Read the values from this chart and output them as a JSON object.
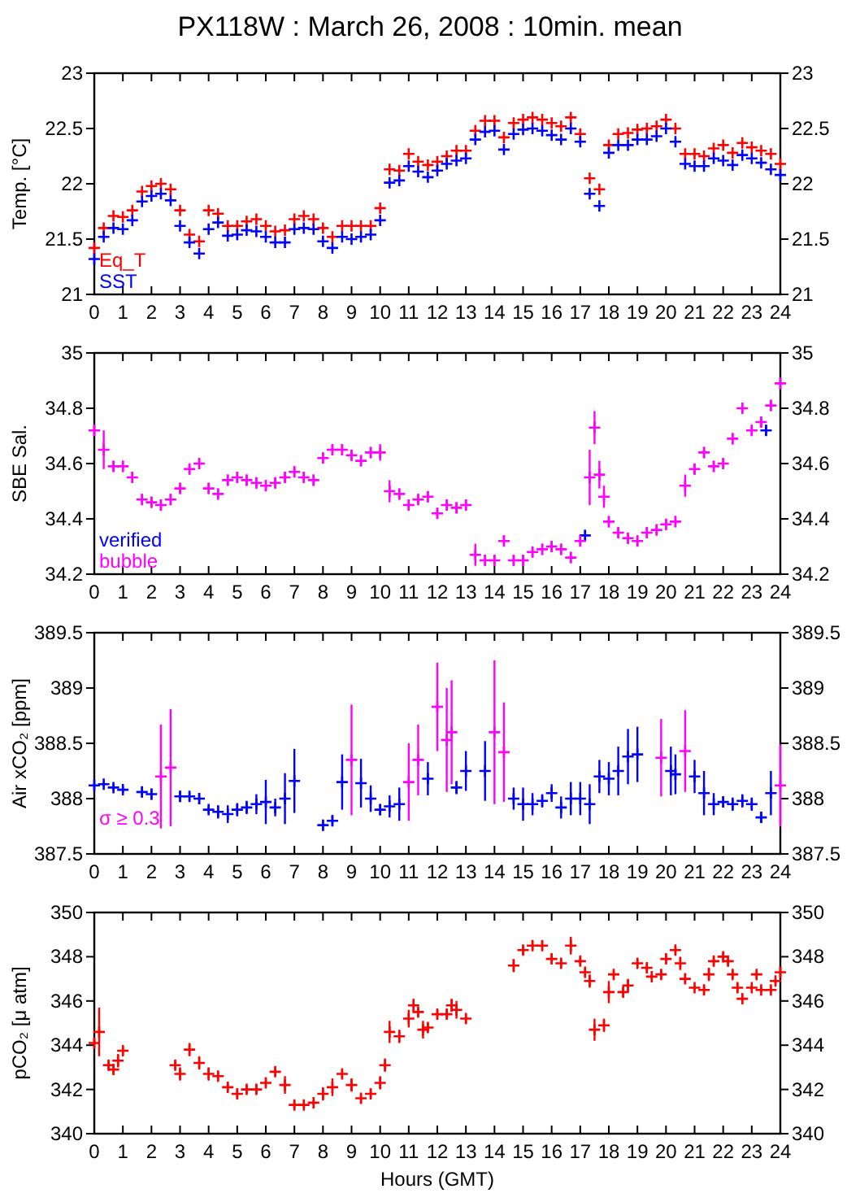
{
  "chart_data": [
    {
      "type": "scatter",
      "title": "PX118W : March 26, 2008 : 10min. mean",
      "ylabel": "Temp. [°C]",
      "marker": "cross",
      "xlim": [
        0,
        24
      ],
      "xticks": [
        0,
        1,
        2,
        3,
        4,
        5,
        6,
        7,
        8,
        9,
        10,
        11,
        12,
        13,
        14,
        15,
        16,
        17,
        18,
        19,
        20,
        21,
        22,
        23,
        24
      ],
      "ylim": [
        21,
        23
      ],
      "yticks": [
        21,
        21.5,
        22,
        22.5,
        23
      ],
      "y2lim": [
        21,
        23
      ],
      "y2ticks": [
        21,
        21.5,
        22,
        22.5,
        23
      ],
      "x": [
        0,
        0.33,
        0.67,
        1,
        1.33,
        1.67,
        2,
        2.33,
        2.67,
        3,
        3.33,
        3.67,
        4,
        4.33,
        4.67,
        5,
        5.33,
        5.67,
        6,
        6.33,
        6.67,
        7,
        7.33,
        7.67,
        8,
        8.33,
        8.67,
        9,
        9.33,
        9.67,
        10,
        10.33,
        10.67,
        11,
        11.33,
        11.67,
        12,
        12.33,
        12.67,
        13,
        13.33,
        13.67,
        14,
        14.33,
        14.67,
        15,
        15.33,
        15.67,
        16,
        16.33,
        16.67,
        17,
        17.33,
        17.67,
        18,
        18.33,
        18.67,
        19,
        19.33,
        19.67,
        20,
        20.33,
        20.67,
        21,
        21.33,
        21.67,
        22,
        22.33,
        22.67,
        23,
        23.33,
        23.67,
        24
      ],
      "series": [
        {
          "name": "Eq_T",
          "color": "#ff0000",
          "values": [
            21.42,
            21.6,
            21.71,
            21.7,
            21.76,
            21.93,
            21.98,
            22,
            21.95,
            21.76,
            21.54,
            21.48,
            21.76,
            21.73,
            21.62,
            21.62,
            21.66,
            21.68,
            21.62,
            21.57,
            21.58,
            21.68,
            21.71,
            21.68,
            21.6,
            21.52,
            21.62,
            21.62,
            21.62,
            21.62,
            21.78,
            22.13,
            22.12,
            22.27,
            22.2,
            22.17,
            22.2,
            22.25,
            22.3,
            22.3,
            22.48,
            22.57,
            22.57,
            22.42,
            22.55,
            22.58,
            22.6,
            22.58,
            22.55,
            22.52,
            22.6,
            22.45,
            22.05,
            21.95,
            22.35,
            22.45,
            22.46,
            22.49,
            22.5,
            22.52,
            22.58,
            22.5,
            22.27,
            22.27,
            22.25,
            22.32,
            22.35,
            22.28,
            22.37,
            22.33,
            22.3,
            22.27,
            22.18
          ]
        },
        {
          "name": "SST",
          "color": "#0000ff",
          "values": [
            21.32,
            21.52,
            21.6,
            21.59,
            21.67,
            21.84,
            21.89,
            21.91,
            21.85,
            21.62,
            21.47,
            21.37,
            21.59,
            21.65,
            21.53,
            21.54,
            21.58,
            21.57,
            21.52,
            21.47,
            21.47,
            21.59,
            21.6,
            21.59,
            21.48,
            21.42,
            21.52,
            21.5,
            21.52,
            21.54,
            21.67,
            22.01,
            22.03,
            22.16,
            22.11,
            22.06,
            22.12,
            22.18,
            22.21,
            22.23,
            22.4,
            22.47,
            22.48,
            22.31,
            22.45,
            22.49,
            22.5,
            22.48,
            22.44,
            22.4,
            22.5,
            22.38,
            21.91,
            21.8,
            22.28,
            22.35,
            22.35,
            22.4,
            22.4,
            22.43,
            22.5,
            22.38,
            22.18,
            22.16,
            22.16,
            22.23,
            22.21,
            22.17,
            22.26,
            22.23,
            22.19,
            22.13,
            22.08
          ]
        }
      ]
    },
    {
      "type": "scatter",
      "ylabel": "SBE Sal.",
      "marker": "cross",
      "xlim": [
        0,
        24
      ],
      "xticks": [
        0,
        1,
        2,
        3,
        4,
        5,
        6,
        7,
        8,
        9,
        10,
        11,
        12,
        13,
        14,
        15,
        16,
        17,
        18,
        19,
        20,
        21,
        22,
        23,
        24
      ],
      "ylim": [
        34.2,
        35
      ],
      "yticks": [
        34.2,
        34.4,
        34.6,
        34.8,
        35
      ],
      "y2lim": [
        34.2,
        35
      ],
      "y2ticks": [
        34.2,
        34.4,
        34.6,
        34.8,
        35
      ],
      "x": [
        0,
        0.33,
        0.67,
        1,
        1.33,
        1.67,
        2,
        2.33,
        2.67,
        3,
        3.33,
        3.67,
        4,
        4.33,
        4.67,
        5,
        5.33,
        5.67,
        6,
        6.33,
        6.67,
        7,
        7.33,
        7.67,
        8,
        8.33,
        8.67,
        9,
        9.33,
        9.67,
        10,
        10.33,
        10.67,
        11,
        11.33,
        11.67,
        12,
        12.33,
        12.67,
        13,
        13.33,
        13.67,
        14,
        14.33,
        14.67,
        15,
        15.33,
        15.67,
        16,
        16.33,
        16.67,
        17,
        17.33,
        17.5,
        17.67,
        17.83,
        18,
        18.33,
        18.67,
        19,
        19.33,
        19.67,
        20,
        20.33,
        20.67,
        21,
        21.33,
        21.67,
        22,
        22.33,
        22.67,
        23,
        23.33,
        23.67,
        24
      ],
      "series": [
        {
          "name": "verified",
          "color": "#0000ff",
          "x": [
            17.17,
            23.5
          ],
          "values": [
            34.34,
            34.72
          ],
          "errors": [
            0.02,
            0.02
          ]
        },
        {
          "name": "bubble",
          "color": "#ff00ff",
          "values": [
            34.72,
            34.65,
            34.59,
            34.59,
            34.55,
            34.47,
            34.46,
            34.45,
            34.47,
            34.51,
            34.58,
            34.6,
            34.51,
            34.49,
            34.54,
            34.55,
            34.54,
            34.53,
            34.52,
            34.53,
            34.55,
            34.57,
            34.55,
            34.54,
            34.62,
            34.65,
            34.65,
            34.63,
            34.61,
            34.64,
            34.64,
            34.5,
            34.49,
            34.45,
            34.47,
            34.48,
            34.42,
            34.45,
            34.44,
            34.45,
            34.27,
            34.25,
            34.25,
            34.32,
            34.25,
            34.25,
            34.28,
            34.29,
            34.3,
            34.29,
            34.26,
            34.32,
            34.55,
            34.73,
            34.56,
            34.48,
            34.39,
            34.35,
            34.33,
            34.32,
            34.35,
            34.36,
            34.38,
            34.39,
            34.52,
            34.58,
            34.64,
            34.59,
            34.6,
            34.69,
            34.8,
            34.72,
            34.75,
            34.81,
            34.89
          ],
          "errors": [
            0.02,
            0.07,
            0.02,
            0.02,
            0.02,
            0.02,
            0.02,
            0.02,
            0.02,
            0.02,
            0.02,
            0.02,
            0.02,
            0.02,
            0.02,
            0.02,
            0.02,
            0.02,
            0.02,
            0.02,
            0.02,
            0.02,
            0.02,
            0.02,
            0.02,
            0.02,
            0.02,
            0.02,
            0.02,
            0.02,
            0.03,
            0.04,
            0.02,
            0.02,
            0.02,
            0.02,
            0.02,
            0.02,
            0.02,
            0.02,
            0.04,
            0.02,
            0.02,
            0.02,
            0.02,
            0.02,
            0.02,
            0.02,
            0.02,
            0.02,
            0.02,
            0.02,
            0.1,
            0.06,
            0.05,
            0.04,
            0.02,
            0.02,
            0.02,
            0.02,
            0.02,
            0.02,
            0.02,
            0.02,
            0.04,
            0.02,
            0.02,
            0.02,
            0.02,
            0.02,
            0.02,
            0.02,
            0.02,
            0.02,
            0.02
          ]
        }
      ]
    },
    {
      "type": "scatter",
      "ylabel": "Air xCO₂ [ppm]",
      "marker": "cross",
      "xlim": [
        0,
        24
      ],
      "xticks": [
        0,
        1,
        2,
        3,
        4,
        5,
        6,
        7,
        8,
        9,
        10,
        11,
        12,
        13,
        14,
        15,
        16,
        17,
        18,
        19,
        20,
        21,
        22,
        23,
        24
      ],
      "ylim": [
        387.5,
        389.5
      ],
      "yticks": [
        387.5,
        388,
        388.5,
        389,
        389.5
      ],
      "y2lim": [
        387.5,
        389.5
      ],
      "y2ticks": [
        387.5,
        388,
        388.5,
        389,
        389.5
      ],
      "x": [
        0,
        0.33,
        0.67,
        1,
        1.67,
        2,
        3,
        3.33,
        3.67,
        4,
        4.33,
        4.67,
        5,
        5.33,
        5.67,
        6,
        6.33,
        6.67,
        7,
        8,
        8.33,
        8.67,
        9.33,
        9.67,
        10,
        10.33,
        10.67,
        11.67,
        12.67,
        13,
        13.67,
        14.67,
        15,
        15.33,
        15.67,
        16,
        16.33,
        16.67,
        17,
        17.33,
        17.67,
        18,
        18.33,
        18.67,
        19,
        20.17,
        20.33,
        21,
        21.33,
        21.67,
        22,
        22.33,
        22.67,
        23,
        23.33,
        23.67
      ],
      "series": [
        {
          "color": "#0000ff",
          "values": [
            388.12,
            388.13,
            388.1,
            388.08,
            388.06,
            388.04,
            388.02,
            388.02,
            388,
            387.9,
            387.88,
            387.86,
            387.9,
            387.92,
            387.95,
            387.97,
            387.92,
            388,
            388.16,
            387.76,
            387.8,
            388.15,
            388.14,
            388,
            387.9,
            387.93,
            387.95,
            388.18,
            388.1,
            388.25,
            388.25,
            388,
            387.95,
            387.95,
            387.98,
            388.05,
            387.92,
            388,
            388,
            387.95,
            388.2,
            388.18,
            388.25,
            388.38,
            388.4,
            388.25,
            388.22,
            388.2,
            388.05,
            387.95,
            387.97,
            387.95,
            387.98,
            387.95,
            387.83,
            388.05
          ],
          "errors": [
            0.02,
            0.02,
            0.03,
            0.03,
            0.05,
            0.05,
            0.05,
            0.04,
            0.05,
            0.03,
            0.06,
            0.08,
            0.06,
            0.06,
            0.09,
            0.2,
            0.08,
            0.23,
            0.29,
            0.05,
            0.05,
            0.25,
            0.22,
            0.12,
            0.05,
            0.1,
            0.15,
            0.15,
            0.06,
            0.18,
            0.27,
            0.1,
            0.15,
            0.1,
            0.06,
            0.08,
            0.1,
            0.15,
            0.15,
            0.18,
            0.15,
            0.15,
            0.22,
            0.25,
            0.25,
            0.22,
            0.18,
            0.15,
            0.2,
            0.1,
            0.05,
            0.06,
            0.06,
            0.06,
            0.05,
            0.2
          ]
        },
        {
          "name": "σ ≥ 0.3",
          "color": "#ff00ff",
          "x": [
            2.33,
            2.67,
            9,
            11,
            11.33,
            12,
            12.33,
            12.5,
            14,
            14.33,
            19.83,
            20.67,
            24
          ],
          "values": [
            388.2,
            388.28,
            388.35,
            388.15,
            388.35,
            388.83,
            388.53,
            388.6,
            388.6,
            388.42,
            388.37,
            388.43,
            388.12
          ],
          "errors": [
            0.47,
            0.53,
            0.5,
            0.35,
            0.32,
            0.4,
            0.47,
            0.47,
            0.65,
            0.45,
            0.35,
            0.37,
            0.37
          ]
        }
      ]
    },
    {
      "type": "scatter",
      "ylabel": "pCO₂ [μ atm]",
      "xlabel": "Hours (GMT)",
      "marker": "cross",
      "xlim": [
        0,
        24
      ],
      "xticks": [
        0,
        1,
        2,
        3,
        4,
        5,
        6,
        7,
        8,
        9,
        10,
        11,
        12,
        13,
        14,
        15,
        16,
        17,
        18,
        19,
        20,
        21,
        22,
        23,
        24
      ],
      "ylim": [
        340,
        350
      ],
      "yticks": [
        340,
        342,
        344,
        346,
        348,
        350
      ],
      "y2lim": [
        340,
        350
      ],
      "y2ticks": [
        340,
        342,
        344,
        346,
        348,
        350
      ],
      "x": [
        0,
        0.17,
        0.5,
        0.67,
        0.83,
        1,
        2.83,
        3,
        3.33,
        3.67,
        4,
        4.33,
        4.67,
        5,
        5.33,
        5.67,
        6,
        6.33,
        6.67,
        7,
        7.33,
        7.67,
        8,
        8.33,
        8.67,
        9,
        9.33,
        9.67,
        10,
        10.17,
        10.33,
        10.67,
        11,
        11.17,
        11.33,
        11.5,
        11.67,
        12,
        12.33,
        12.5,
        12.67,
        13,
        14.67,
        15,
        15.33,
        15.67,
        16,
        16.33,
        16.67,
        17,
        17.17,
        17.33,
        17.5,
        17.83,
        18,
        18.17,
        18.5,
        18.67,
        19,
        19.33,
        19.5,
        19.83,
        20,
        20.33,
        20.5,
        20.67,
        21,
        21.33,
        21.5,
        21.67,
        22,
        22.17,
        22.33,
        22.5,
        22.67,
        23,
        23.17,
        23.33,
        23.67,
        23.83,
        24
      ],
      "series": [
        {
          "color": "#ff0000",
          "values": [
            344.1,
            344.6,
            343.1,
            342.9,
            343.3,
            343.75,
            343.1,
            342.7,
            343.8,
            343.2,
            342.7,
            342.6,
            342.1,
            341.8,
            342,
            342,
            342.3,
            342.8,
            342.2,
            341.3,
            341.3,
            341.4,
            341.8,
            342.1,
            342.7,
            342.2,
            341.6,
            341.8,
            342.3,
            343.1,
            344.6,
            344.4,
            345.2,
            345.8,
            345.5,
            344.7,
            344.8,
            345.4,
            345.4,
            345.8,
            345.6,
            345.2,
            347.6,
            348.3,
            348.5,
            348.5,
            347.9,
            347.7,
            348.5,
            347.8,
            347.3,
            346.9,
            344.7,
            344.9,
            346.4,
            347.2,
            346.4,
            346.7,
            347.7,
            347.5,
            347.1,
            347.2,
            347.9,
            348.3,
            347.7,
            347,
            346.6,
            346.5,
            347.2,
            347.8,
            348,
            347.8,
            347.2,
            346.6,
            346.1,
            346.6,
            347.2,
            346.5,
            346.5,
            346.9,
            347.3
          ],
          "errors": [
            0.2,
            1.1,
            0.2,
            0.2,
            0.3,
            0.2,
            0.2,
            0.3,
            0.3,
            0.3,
            0.3,
            0.2,
            0.2,
            0.2,
            0.2,
            0.2,
            0.2,
            0.2,
            0.4,
            0.2,
            0.1,
            0.1,
            0.3,
            0.4,
            0.2,
            0.3,
            0.2,
            0.2,
            0.3,
            0.3,
            0.5,
            0.3,
            0.4,
            0.3,
            0.2,
            0.4,
            0.2,
            0.2,
            0.2,
            0.3,
            0.4,
            0.2,
            0.3,
            0.2,
            0.2,
            0.2,
            0.2,
            0.2,
            0.4,
            0.2,
            0.2,
            0.3,
            0.5,
            0.3,
            0.5,
            0.2,
            0.2,
            0.3,
            0.2,
            0.2,
            0.1,
            0.2,
            0.2,
            0.2,
            0.3,
            0.2,
            0.1,
            0.2,
            0.3,
            0.2,
            0.2,
            0.2,
            0.2,
            0.2,
            0.2,
            0.1,
            0.2,
            0.1,
            0.1,
            0.1,
            0.2
          ]
        }
      ]
    }
  ]
}
